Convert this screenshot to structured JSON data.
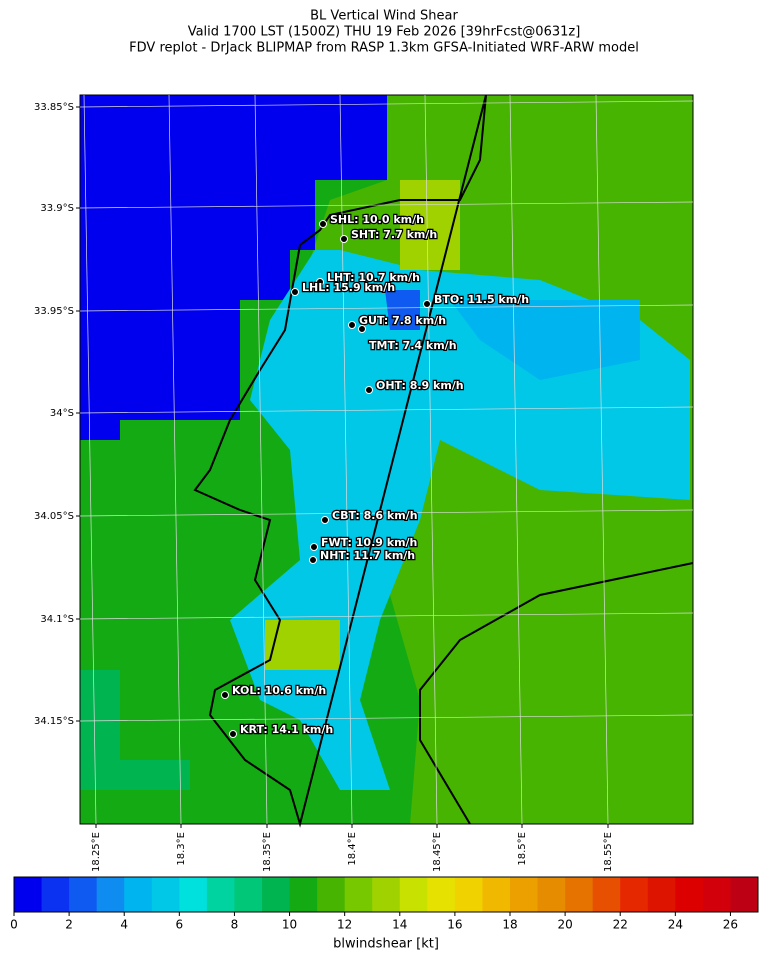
{
  "title": [
    "BL Vertical Wind Shear",
    "Valid 1700 LST (1500Z) THU 19 Feb 2026 [39hrFcst@0631z]",
    "FDV replot - DrJack BLIPMAP from RASP 1.3km GFSA-Initiated WRF-ARW model"
  ],
  "map": {
    "lat_labels": [
      "33.85°S",
      "33.9°S",
      "33.95°S",
      "34°S",
      "34.05°S",
      "34.1°S",
      "34.15°S"
    ],
    "lon_labels": [
      "18.25°E",
      "18.3°E",
      "18.35°E",
      "18.4°E",
      "18.45°E",
      "18.5°E",
      "18.55°E"
    ],
    "stations": [
      "SHL: 10.0 km/h",
      "SHT: 7.7 km/h",
      "LHT: 10.7 km/h",
      "LHL: 15.9 km/h",
      "BTO: 11.5 km/h",
      "GUT: 7.8 km/h",
      "TMT: 7.4 km/h",
      "OHT: 8.9 km/h",
      "CBT: 8.6 km/h",
      "FWT: 10.9 km/h",
      "NHT: 11.7 km/h",
      "KOL: 10.6 km/h",
      "KRT: 14.1 km/h"
    ]
  },
  "colorbar": {
    "label": "blwindshear [kt]",
    "lim": [
      0,
      27
    ],
    "ticks": [
      0,
      2,
      4,
      6,
      8,
      10,
      12,
      14,
      16,
      18,
      20,
      22,
      24,
      26
    ],
    "colors": [
      "#0000ee",
      "#0a32f0",
      "#0f5af0",
      "#0f8cf0",
      "#00b4f0",
      "#00c8e6",
      "#00e0dc",
      "#00d2a0",
      "#00c878",
      "#00b450",
      "#14aa14",
      "#46b400",
      "#78c800",
      "#a0d200",
      "#c8e100",
      "#e6e100",
      "#f0d200",
      "#f0b900",
      "#eba000",
      "#e68c00",
      "#e67300",
      "#e65000",
      "#e62800",
      "#dc1400",
      "#dc0000",
      "#d2000a",
      "#be0014"
    ]
  }
}
